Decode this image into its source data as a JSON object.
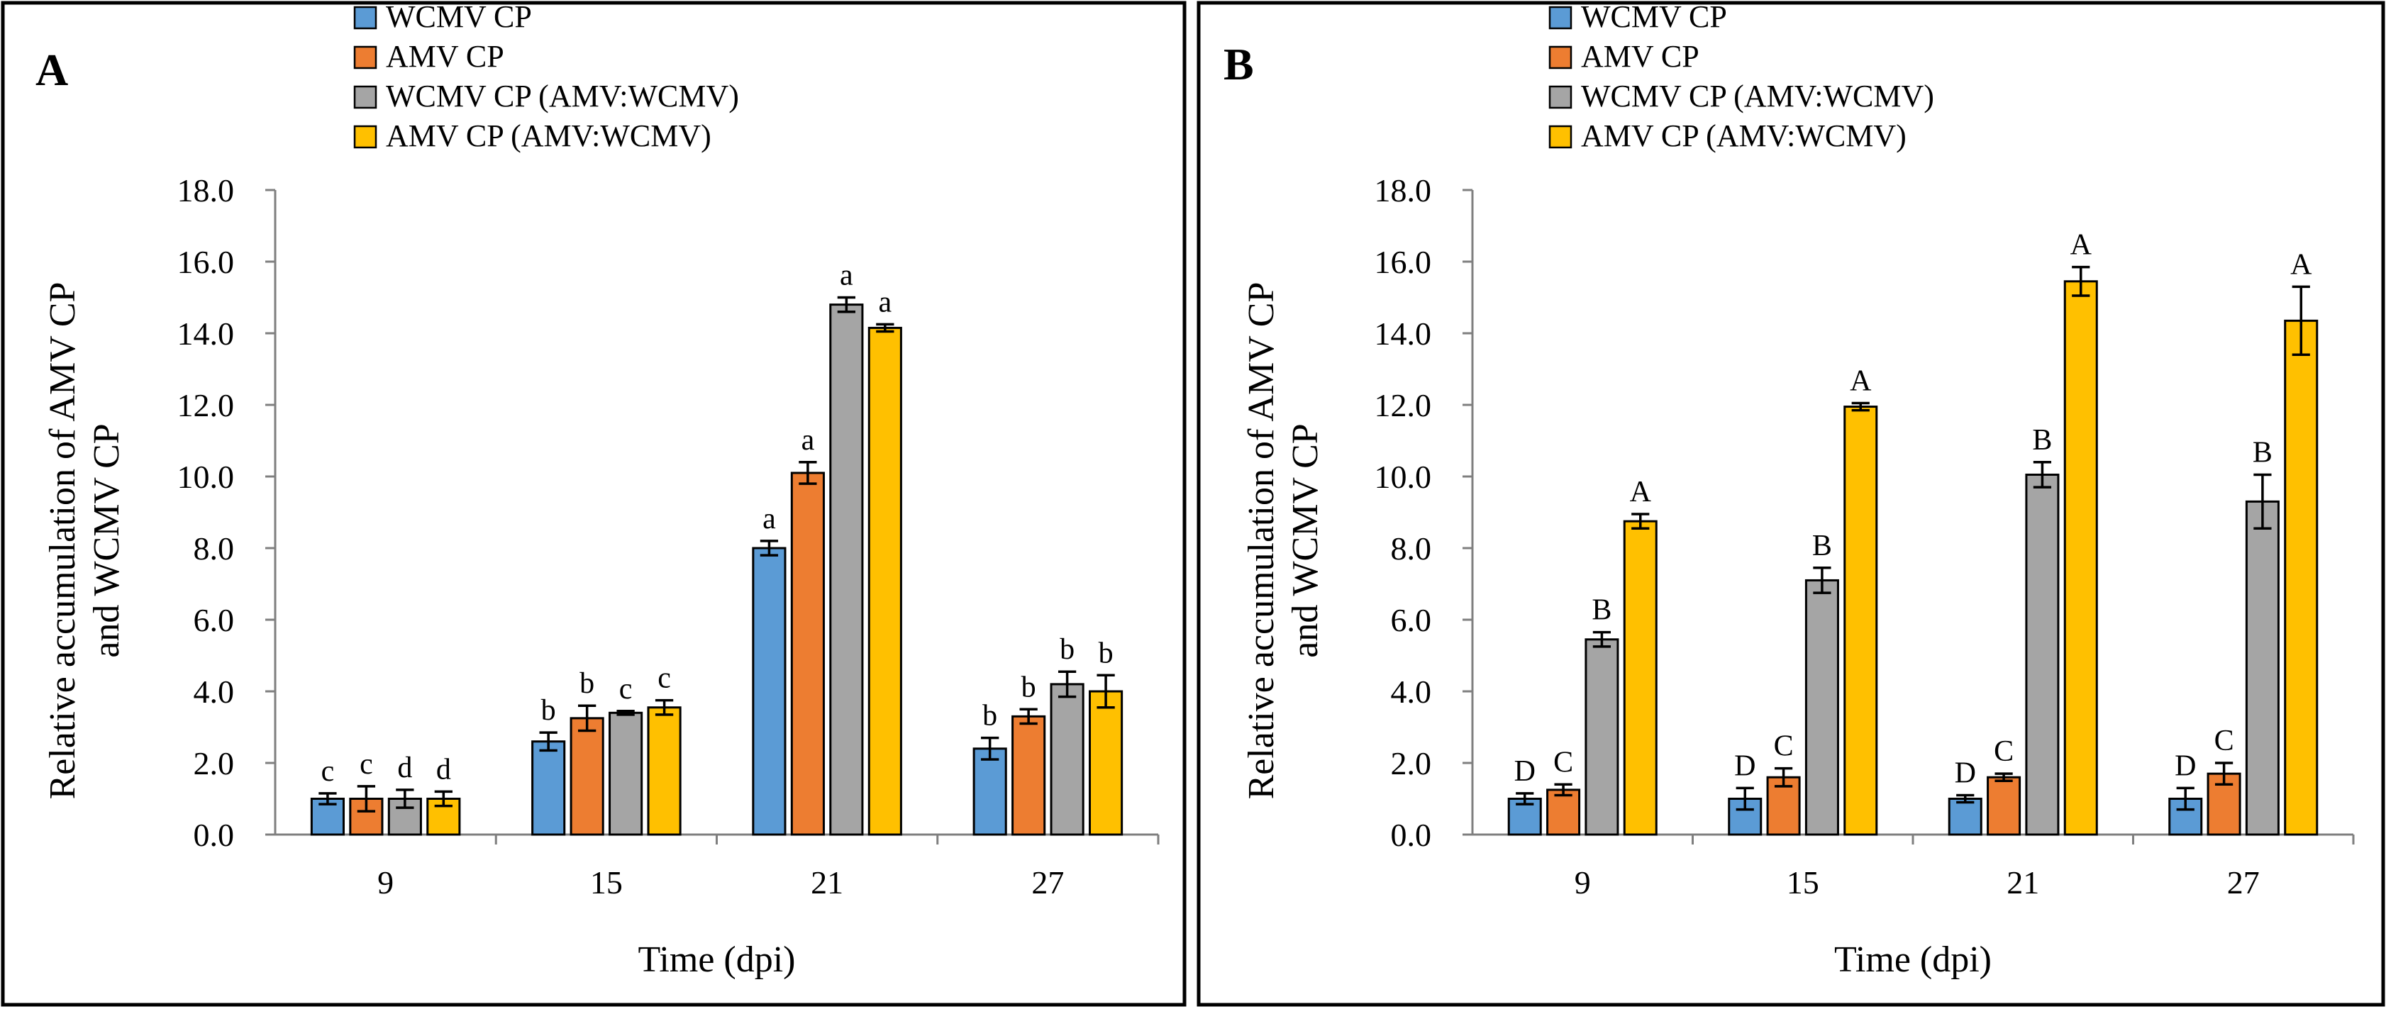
{
  "colors": {
    "WCMV CP": "#5b9bd5",
    "AMV CP": "#ed7d31",
    "WCMV CP (AMV:WCMV)": "#a5a5a5",
    "AMV CP (AMV:WCMV)": "#ffc000"
  },
  "chart_data": [
    {
      "type": "bar",
      "panel_label": "A",
      "categories": [
        "9",
        "15",
        "21",
        "27"
      ],
      "xlabel": "Time (dpi)",
      "ylabel_line1": "Relative accumulation of AMV CP",
      "ylabel_line2": "and WCMV CP",
      "ylim": [
        0,
        18
      ],
      "yticks": [
        "0.0",
        "2.0",
        "4.0",
        "6.0",
        "8.0",
        "10.0",
        "12.0",
        "14.0",
        "16.0",
        "18.0"
      ],
      "legend": [
        "WCMV CP",
        "AMV CP",
        "WCMV CP (AMV:WCMV)",
        "AMV CP (AMV:WCMV)"
      ],
      "legend_position": "top-left",
      "series": [
        {
          "name": "WCMV CP",
          "values": [
            1.0,
            2.6,
            8.0,
            2.4
          ],
          "errors": [
            0.15,
            0.25,
            0.2,
            0.3
          ],
          "letters": [
            "c",
            "b",
            "a",
            "b"
          ]
        },
        {
          "name": "AMV CP",
          "values": [
            1.0,
            3.25,
            10.1,
            3.3
          ],
          "errors": [
            0.35,
            0.35,
            0.3,
            0.2
          ],
          "letters": [
            "c",
            "b",
            "a",
            "b"
          ]
        },
        {
          "name": "WCMV CP (AMV:WCMV)",
          "values": [
            1.0,
            3.4,
            14.8,
            4.2
          ],
          "errors": [
            0.25,
            0.05,
            0.2,
            0.35
          ],
          "letters": [
            "d",
            "c",
            "a",
            "b"
          ]
        },
        {
          "name": "AMV CP (AMV:WCMV)",
          "values": [
            1.0,
            3.55,
            14.15,
            4.0
          ],
          "errors": [
            0.2,
            0.2,
            0.1,
            0.45
          ],
          "letters": [
            "d",
            "c",
            "a",
            "b"
          ]
        }
      ]
    },
    {
      "type": "bar",
      "panel_label": "B",
      "categories": [
        "9",
        "15",
        "21",
        "27"
      ],
      "xlabel": "Time (dpi)",
      "ylabel_line1": "Relative accumulation  of AMV CP",
      "ylabel_line2": "and WCMV CP",
      "ylim": [
        0,
        18
      ],
      "yticks": [
        "0.0",
        "2.0",
        "4.0",
        "6.0",
        "8.0",
        "10.0",
        "12.0",
        "14.0",
        "16.0",
        "18.0"
      ],
      "legend": [
        "WCMV CP",
        "AMV CP",
        "WCMV CP (AMV:WCMV)",
        "AMV CP (AMV:WCMV)"
      ],
      "legend_position": "top-left",
      "series": [
        {
          "name": "WCMV CP",
          "values": [
            1.0,
            1.0,
            1.0,
            1.0
          ],
          "errors": [
            0.15,
            0.3,
            0.1,
            0.3
          ],
          "letters": [
            "D",
            "D",
            "D",
            "D"
          ]
        },
        {
          "name": "AMV CP",
          "values": [
            1.25,
            1.6,
            1.6,
            1.7
          ],
          "errors": [
            0.15,
            0.25,
            0.1,
            0.3
          ],
          "letters": [
            "C",
            "C",
            "C",
            "C"
          ]
        },
        {
          "name": "WCMV CP (AMV:WCMV)",
          "values": [
            5.45,
            7.1,
            10.05,
            9.3
          ],
          "errors": [
            0.2,
            0.35,
            0.35,
            0.75
          ],
          "letters": [
            "B",
            "B",
            "B",
            "B"
          ]
        },
        {
          "name": "AMV CP (AMV:WCMV)",
          "values": [
            8.75,
            11.95,
            15.45,
            14.35
          ],
          "errors": [
            0.2,
            0.1,
            0.4,
            0.95
          ],
          "letters": [
            "A",
            "A",
            "A",
            "A"
          ]
        }
      ]
    }
  ]
}
